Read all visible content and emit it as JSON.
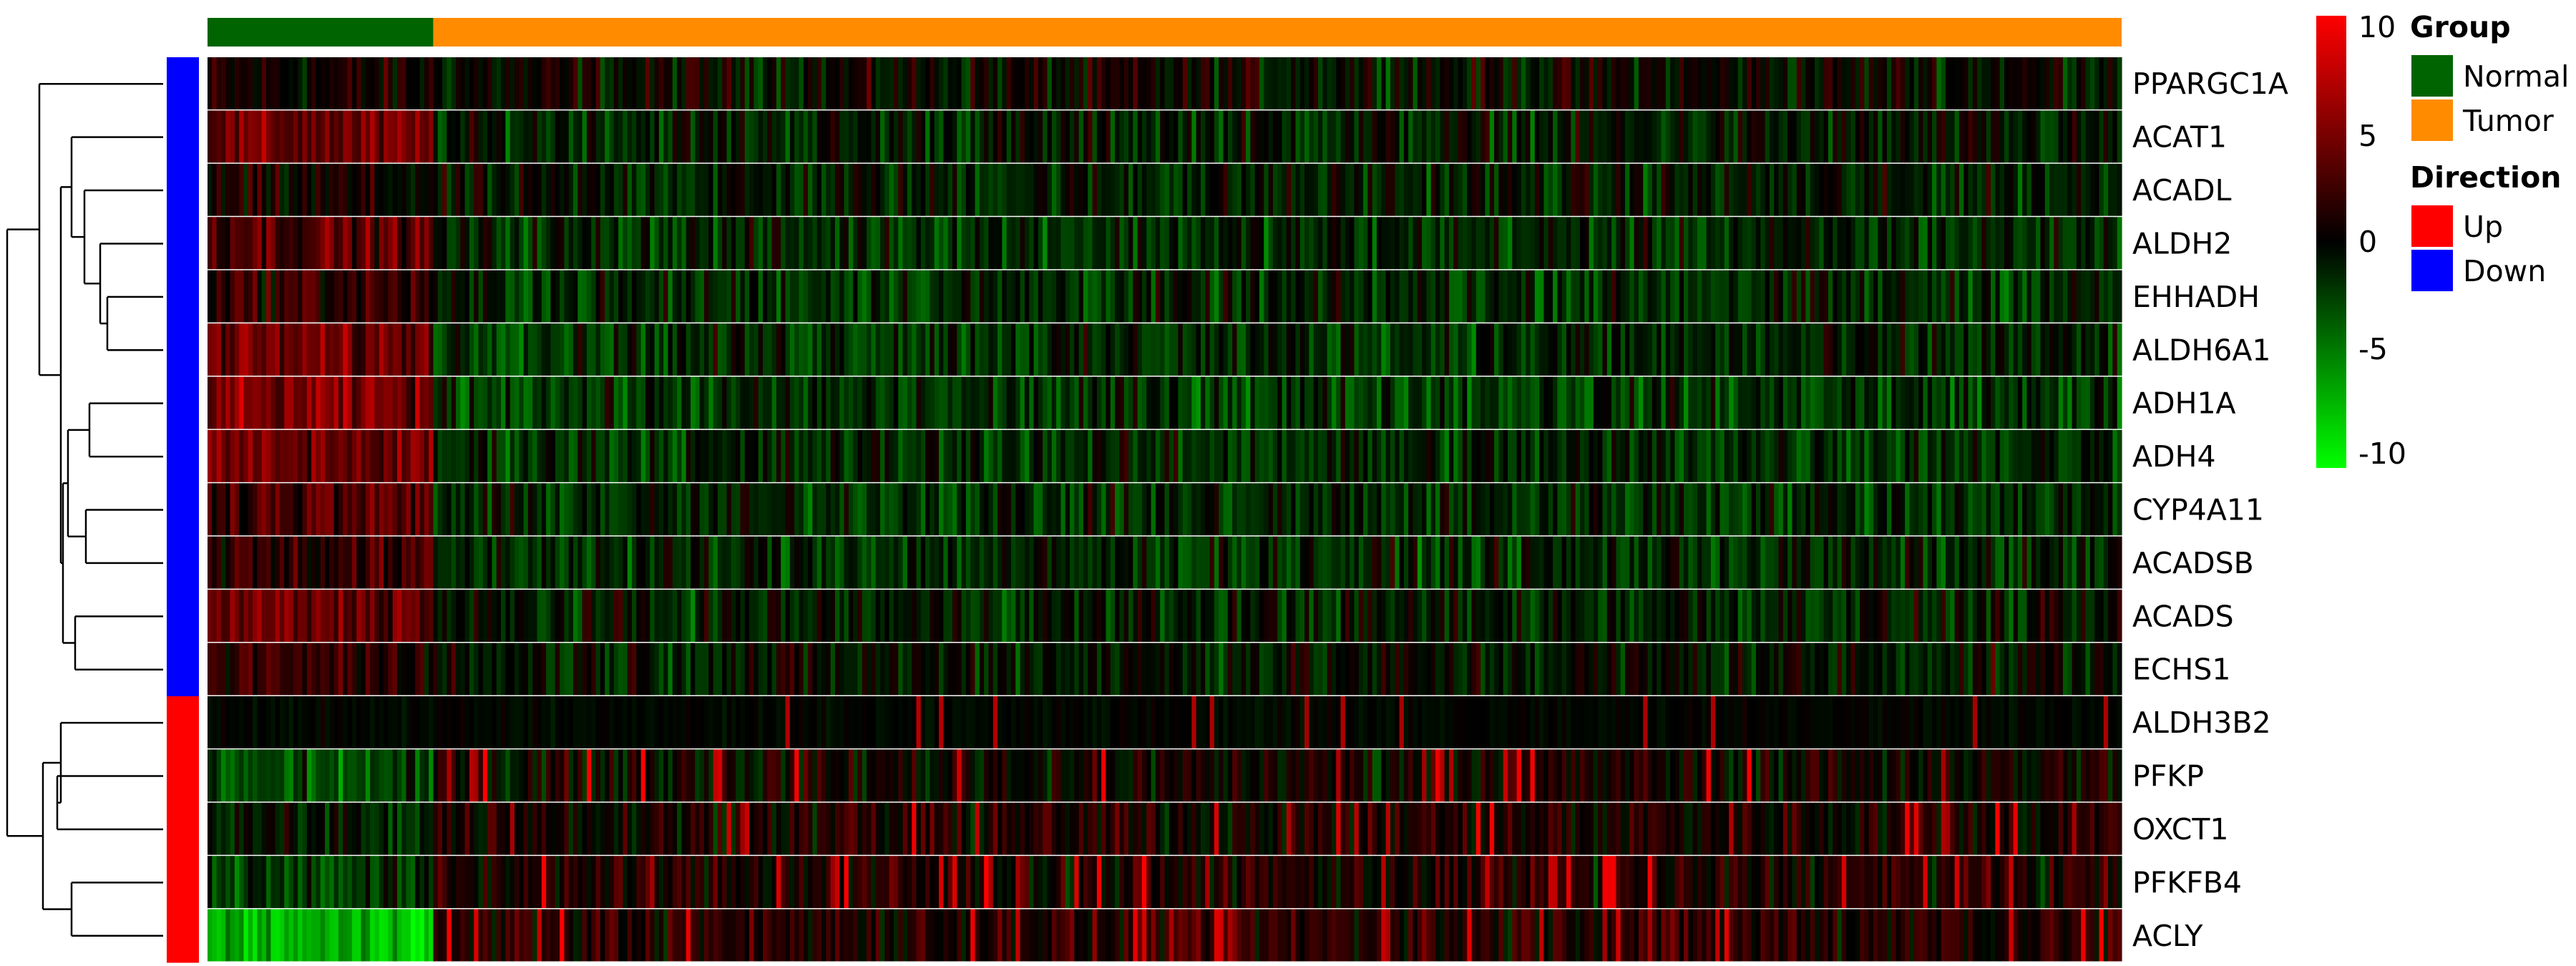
{
  "chart_data": {
    "type": "heatmap",
    "rows": [
      "PPARGC1A",
      "ACAT1",
      "ACADL",
      "ALDH2",
      "EHHADH",
      "ALDH6A1",
      "ADH1A",
      "ADH4",
      "CYP4A11",
      "ACADSB",
      "ACADS",
      "ECHS1",
      "ALDH3B2",
      "PFKP",
      "OXCT1",
      "PFKFB4",
      "ACLY"
    ],
    "row_direction": [
      "Down",
      "Down",
      "Down",
      "Down",
      "Down",
      "Down",
      "Down",
      "Down",
      "Down",
      "Down",
      "Down",
      "Down",
      "Up",
      "Up",
      "Up",
      "Up",
      "Up"
    ],
    "column_groups": [
      {
        "name": "Normal",
        "count": 50
      },
      {
        "name": "Tumor",
        "count": 374
      }
    ],
    "row_mean_by_group": {
      "Normal": [
        0.5,
        4.0,
        0.3,
        3.5,
        2.0,
        4.0,
        4.5,
        4.0,
        3.0,
        2.0,
        4.0,
        2.0,
        -0.5,
        -3.0,
        -1.0,
        -2.0,
        -7.0
      ],
      "Tumor": [
        0.0,
        -1.0,
        -1.0,
        -1.5,
        -1.5,
        -1.5,
        -2.0,
        -1.5,
        -1.5,
        -1.5,
        -1.0,
        -0.5,
        -0.3,
        0.5,
        1.0,
        1.0,
        1.5
      ]
    },
    "color_scale": {
      "min": -10,
      "max": 10,
      "ticks": [
        "10",
        "5",
        "0",
        "-5",
        "-10"
      ],
      "colors": [
        "#00ff00",
        "#000000",
        "#ff0000"
      ]
    },
    "legend": {
      "group": {
        "title": "Group",
        "items": [
          {
            "label": "Normal",
            "color": "#006400"
          },
          {
            "label": "Tumor",
            "color": "#ff8c00"
          }
        ]
      },
      "direction": {
        "title": "Direction",
        "items": [
          {
            "label": "Up",
            "color": "#ff0000"
          },
          {
            "label": "Down",
            "color": "#0000ff"
          }
        ]
      }
    },
    "dendrogram": "hierarchical clustering of rows, drawn on left",
    "grid": false
  }
}
